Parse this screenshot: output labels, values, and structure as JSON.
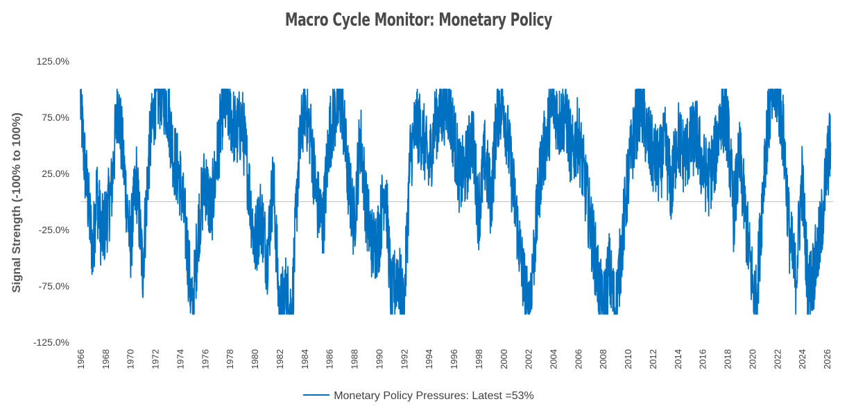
{
  "chart_data": {
    "type": "line",
    "title": "Macro Cycle Monitor: Monetary Policy",
    "xlabel": "",
    "ylabel": "Signal Strength (-100% to 100%)",
    "ylim": [
      -125,
      125
    ],
    "xlim": [
      1966,
      2026.5
    ],
    "y_ticks": [
      "125.0%",
      "75.0%",
      "25.0%",
      "-25.0%",
      "-75.0%",
      "-125.0%"
    ],
    "y_tick_values": [
      125,
      75,
      25,
      -25,
      -75,
      -125
    ],
    "x_ticks": [
      "1966",
      "1968",
      "1970",
      "1972",
      "1974",
      "1976",
      "1978",
      "1980",
      "1982",
      "1984",
      "1986",
      "1988",
      "1990",
      "1992",
      "1994",
      "1996",
      "1998",
      "2000",
      "2002",
      "2004",
      "2006",
      "2008",
      "2010",
      "2012",
      "2014",
      "2016",
      "2018",
      "2020",
      "2022",
      "2024",
      "2026"
    ],
    "reference_line": 0,
    "grid": false,
    "legend_position": "bottom",
    "series": [
      {
        "name": "Monetary Policy Pressures: Latest =53%",
        "color": "#0070C0",
        "x": [
          1966.0,
          1966.3,
          1966.7,
          1967.0,
          1967.3,
          1967.7,
          1968.0,
          1968.5,
          1969.0,
          1969.5,
          1970.0,
          1970.5,
          1971.0,
          1971.5,
          1972.0,
          1972.5,
          1973.0,
          1973.5,
          1974.0,
          1974.5,
          1975.0,
          1975.5,
          1976.0,
          1976.5,
          1977.0,
          1977.5,
          1978.0,
          1978.5,
          1979.0,
          1979.5,
          1980.0,
          1980.5,
          1981.0,
          1981.5,
          1982.0,
          1982.5,
          1983.0,
          1983.5,
          1984.0,
          1984.5,
          1985.0,
          1985.5,
          1986.0,
          1986.5,
          1987.0,
          1987.5,
          1988.0,
          1988.5,
          1989.0,
          1989.5,
          1990.0,
          1990.5,
          1991.0,
          1991.5,
          1992.0,
          1992.5,
          1993.0,
          1993.5,
          1994.0,
          1994.5,
          1995.0,
          1995.5,
          1996.0,
          1996.5,
          1997.0,
          1997.5,
          1998.0,
          1998.5,
          1999.0,
          1999.5,
          2000.0,
          2000.5,
          2001.0,
          2001.5,
          2002.0,
          2002.5,
          2003.0,
          2003.5,
          2004.0,
          2004.5,
          2005.0,
          2005.5,
          2006.0,
          2006.5,
          2007.0,
          2007.5,
          2008.0,
          2008.5,
          2009.0,
          2009.5,
          2010.0,
          2010.5,
          2011.0,
          2011.5,
          2012.0,
          2012.5,
          2013.0,
          2013.5,
          2014.0,
          2014.5,
          2015.0,
          2015.5,
          2016.0,
          2016.5,
          2017.0,
          2017.5,
          2018.0,
          2018.5,
          2019.0,
          2019.5,
          2020.0,
          2020.3,
          2020.6,
          2021.0,
          2021.5,
          2022.0,
          2022.5,
          2023.0,
          2023.5,
          2024.0,
          2024.5,
          2025.0,
          2025.5,
          2026.0,
          2026.3
        ],
        "values": [
          90,
          40,
          -10,
          -45,
          10,
          -30,
          -20,
          10,
          90,
          30,
          -40,
          20,
          -60,
          40,
          90,
          100,
          85,
          40,
          20,
          -30,
          -100,
          -20,
          20,
          -10,
          40,
          90,
          80,
          60,
          70,
          20,
          -40,
          -10,
          -50,
          20,
          -100,
          -80,
          -100,
          30,
          90,
          60,
          0,
          -20,
          60,
          80,
          90,
          20,
          -20,
          60,
          -10,
          -40,
          -30,
          20,
          -90,
          -60,
          -100,
          40,
          70,
          60,
          30,
          70,
          80,
          90,
          60,
          20,
          30,
          60,
          -10,
          40,
          0,
          80,
          90,
          40,
          -10,
          -60,
          -100,
          -40,
          30,
          60,
          90,
          70,
          80,
          40,
          60,
          20,
          -20,
          -60,
          -100,
          -60,
          -100,
          -40,
          20,
          60,
          90,
          60,
          40,
          30,
          50,
          10,
          60,
          40,
          50,
          60,
          30,
          20,
          40,
          80,
          70,
          -10,
          40,
          -20,
          -70,
          -90,
          -40,
          40,
          90,
          100,
          60,
          -30,
          -70,
          20,
          -80,
          -60,
          -30,
          30,
          53
        ]
      }
    ]
  }
}
